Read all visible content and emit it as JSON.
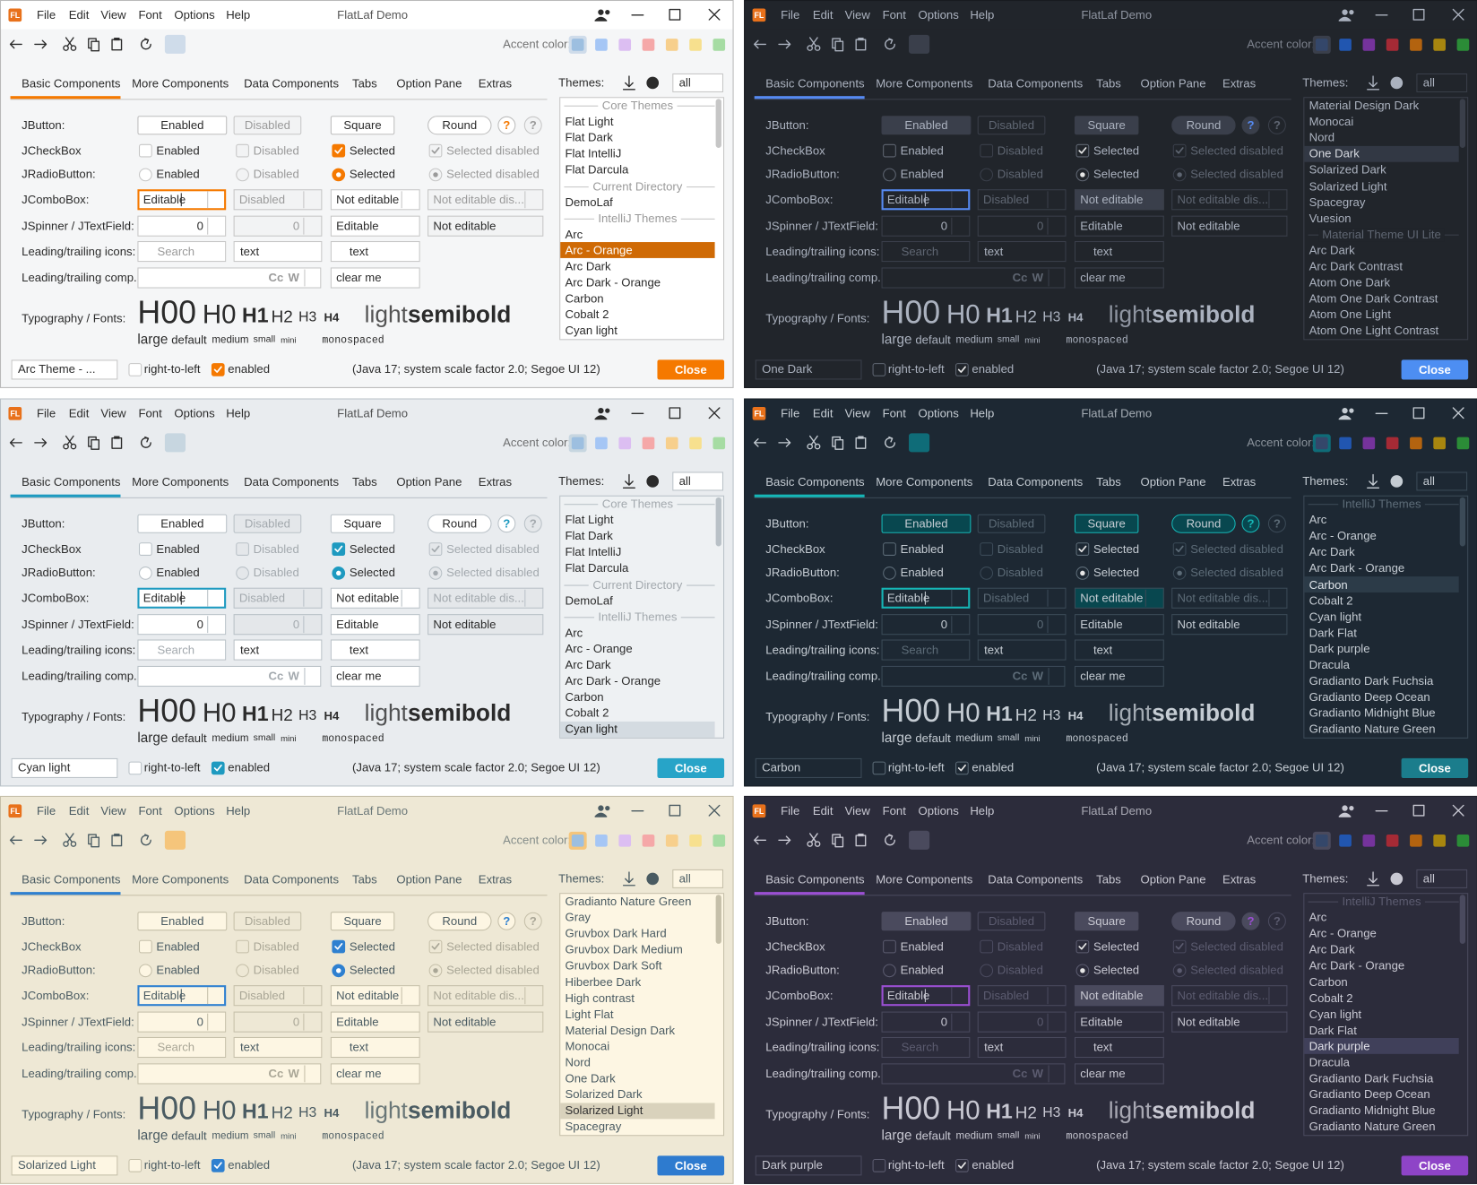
{
  "ui": {
    "logo": "FL",
    "title": "FlatLaf Demo",
    "menus": [
      "File",
      "Edit",
      "View",
      "Font",
      "Options",
      "Help"
    ],
    "accent_label": "Accent color:",
    "tabs": [
      "Basic Components",
      "More Components",
      "Data Components",
      "Tabs",
      "Option Pane",
      "Extras"
    ],
    "themes_label": "Themes:",
    "theme_filter": "all",
    "row_labels": [
      "JButton:",
      "JCheckBox",
      "JRadioButton:",
      "JComboBox:",
      "JSpinner / JTextField:",
      "Leading/trailing icons:",
      "Leading/trailing comp.:",
      "Typography / Fonts:"
    ],
    "buttons": [
      "Enabled",
      "Disabled",
      "Square",
      "Round"
    ],
    "help": "?",
    "checkboxes": [
      "Enabled",
      "Disabled",
      "Selected",
      "Selected disabled"
    ],
    "radios": [
      "Enabled",
      "Disabled",
      "Selected",
      "Selected disabled"
    ],
    "combos": [
      "Editable",
      "Disabled",
      "Not editable",
      "Not editable dis..."
    ],
    "spinners": [
      "0",
      "0"
    ],
    "text_fields": [
      "Editable",
      "Not editable"
    ],
    "icon_fields": [
      "Search",
      "text",
      "text"
    ],
    "comp_field": [
      "Cc",
      "W",
      "clear me"
    ],
    "typography": {
      "headings": [
        "H00",
        "H0",
        "H1",
        "H2",
        "H3",
        "H4"
      ],
      "weights": [
        "light",
        "semibold"
      ],
      "sizes": [
        "large",
        "default",
        "medium",
        "small",
        "mini"
      ],
      "mono": "monospaced"
    },
    "bottom": {
      "rtl": "right-to-left",
      "enabled": "enabled",
      "status": "(Java 17;  system scale factor 2.0; Segoe UI 12)",
      "close": "Close"
    }
  },
  "windows": [
    {
      "theme": "Arc Theme - ...",
      "theme_list": [
        {
          "header": "Core Themes"
        },
        "Flat Light",
        "Flat Dark",
        "Flat IntelliJ",
        "Flat Darcula",
        {
          "header": "Current Directory"
        },
        "DemoLaf",
        {
          "header": "IntelliJ Themes"
        },
        "Arc",
        {
          "text": "Arc - Orange",
          "selected": true
        },
        "Arc Dark",
        "Arc Dark - Orange",
        "Carbon",
        "Cobalt 2",
        "Cyan light"
      ]
    },
    {
      "theme": "One Dark",
      "theme_list": [
        "Material Design Dark",
        "Monocai",
        "Nord",
        {
          "text": "One Dark",
          "selected": true
        },
        "Solarized Dark",
        "Solarized Light",
        "Spacegray",
        "Vuesion",
        {
          "header": "Material Theme UI Lite"
        },
        "Arc Dark",
        "Arc Dark Contrast",
        "Atom One Dark",
        "Atom One Dark Contrast",
        "Atom One Light",
        "Atom One Light Contrast"
      ]
    },
    {
      "theme": "Cyan light",
      "theme_list": [
        {
          "header": "Core Themes"
        },
        "Flat Light",
        "Flat Dark",
        "Flat IntelliJ",
        "Flat Darcula",
        {
          "header": "Current Directory"
        },
        "DemoLaf",
        {
          "header": "IntelliJ Themes"
        },
        "Arc",
        "Arc - Orange",
        "Arc Dark",
        "Arc Dark - Orange",
        "Carbon",
        "Cobalt 2",
        {
          "text": "Cyan light",
          "selected": true
        }
      ]
    },
    {
      "theme": "Carbon",
      "theme_list": [
        {
          "header": "IntelliJ Themes"
        },
        "Arc",
        "Arc - Orange",
        "Arc Dark",
        "Arc Dark - Orange",
        {
          "text": "Carbon",
          "selected": true
        },
        "Cobalt 2",
        "Cyan light",
        "Dark Flat",
        "Dark purple",
        "Dracula",
        "Gradianto Dark Fuchsia",
        "Gradianto Deep Ocean",
        "Gradianto Midnight Blue",
        "Gradianto Nature Green"
      ]
    },
    {
      "theme": "Solarized Light",
      "theme_list": [
        "Gradianto Nature Green",
        "Gray",
        "Gruvbox Dark Hard",
        "Gruvbox Dark Medium",
        "Gruvbox Dark Soft",
        "Hiberbee Dark",
        "High contrast",
        "Light Flat",
        "Material Design Dark",
        "Monocai",
        "Nord",
        "One Dark",
        "Solarized Dark",
        {
          "text": "Solarized Light",
          "selected": true
        },
        "Spacegray"
      ]
    },
    {
      "theme": "Dark purple",
      "theme_list": [
        {
          "header": "IntelliJ Themes"
        },
        "Arc",
        "Arc - Orange",
        "Arc Dark",
        "Arc Dark - Orange",
        "Carbon",
        "Cobalt 2",
        "Cyan light",
        "Dark Flat",
        {
          "text": "Dark purple",
          "selected": true
        },
        "Dracula",
        "Gradianto Dark Fuchsia",
        "Gradianto Deep Ocean",
        "Gradianto Midnight Blue",
        "Gradianto Nature Green"
      ]
    }
  ]
}
